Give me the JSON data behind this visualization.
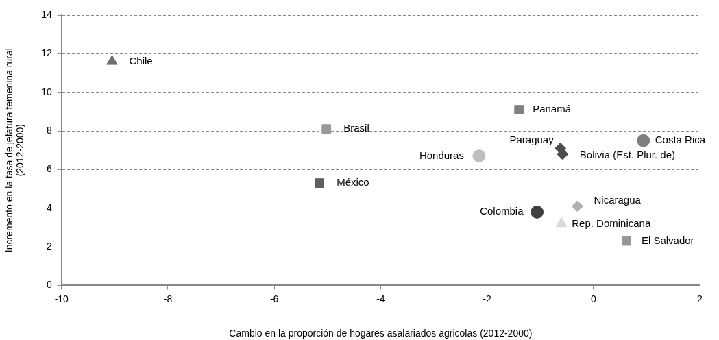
{
  "chart_data": {
    "type": "scatter",
    "xlabel": "Cambio en la proporción de hogares asalariados agricolas (2012-2000)",
    "ylabel": "Incremento en la tasa de jefatura femenina rural\n(2012-2000)",
    "xlim": [
      -10,
      2
    ],
    "xticks": [
      -10,
      -8,
      -6,
      -4,
      -2,
      0,
      2
    ],
    "ylim": [
      0,
      14
    ],
    "yticks": [
      0,
      2,
      4,
      6,
      8,
      10,
      12,
      14
    ],
    "grid": "y",
    "legend": false,
    "series": [
      {
        "name": "Chile",
        "color": "#6e6e6e",
        "marker": "triangle",
        "x": [
          -9.05
        ],
        "values": [
          11.6
        ]
      },
      {
        "name": "Brasil",
        "color": "#999999",
        "marker": "square",
        "x": [
          -5.02
        ],
        "values": [
          8.1
        ]
      },
      {
        "name": "México",
        "color": "#5f5f5f",
        "marker": "square",
        "x": [
          -5.15
        ],
        "values": [
          5.3
        ]
      },
      {
        "name": "Panamá",
        "color": "#808080",
        "marker": "square",
        "x": [
          -1.4
        ],
        "values": [
          9.1
        ]
      },
      {
        "name": "Honduras",
        "color": "#bfbfbf",
        "marker": "circle",
        "x": [
          -2.15
        ],
        "values": [
          6.7
        ]
      },
      {
        "name": "Paraguay",
        "color": "#4d4d4d",
        "marker": "diamond",
        "x": [
          -0.62
        ],
        "values": [
          7.1
        ]
      },
      {
        "name": "Bolivia (Est. Plur. de)",
        "color": "#4d4d4d",
        "marker": "diamond",
        "x": [
          -0.58
        ],
        "values": [
          6.8
        ]
      },
      {
        "name": "Costa Rica",
        "color": "#7f7f7f",
        "marker": "circle",
        "x": [
          0.94
        ],
        "values": [
          7.5
        ]
      },
      {
        "name": "Colombia",
        "color": "#404040",
        "marker": "circle",
        "x": [
          -1.06
        ],
        "values": [
          3.8
        ]
      },
      {
        "name": "Nicaragua",
        "color": "#b0b0b0",
        "marker": "diamond",
        "x": [
          -0.3
        ],
        "values": [
          4.1
        ]
      },
      {
        "name": "Rep. Dominicana",
        "color": "#d9d9d9",
        "marker": "triangle",
        "x": [
          -0.6
        ],
        "values": [
          3.2
        ]
      },
      {
        "name": "El Salvador",
        "color": "#969696",
        "marker": "square",
        "x": [
          0.62
        ],
        "values": [
          2.3
        ]
      }
    ]
  }
}
